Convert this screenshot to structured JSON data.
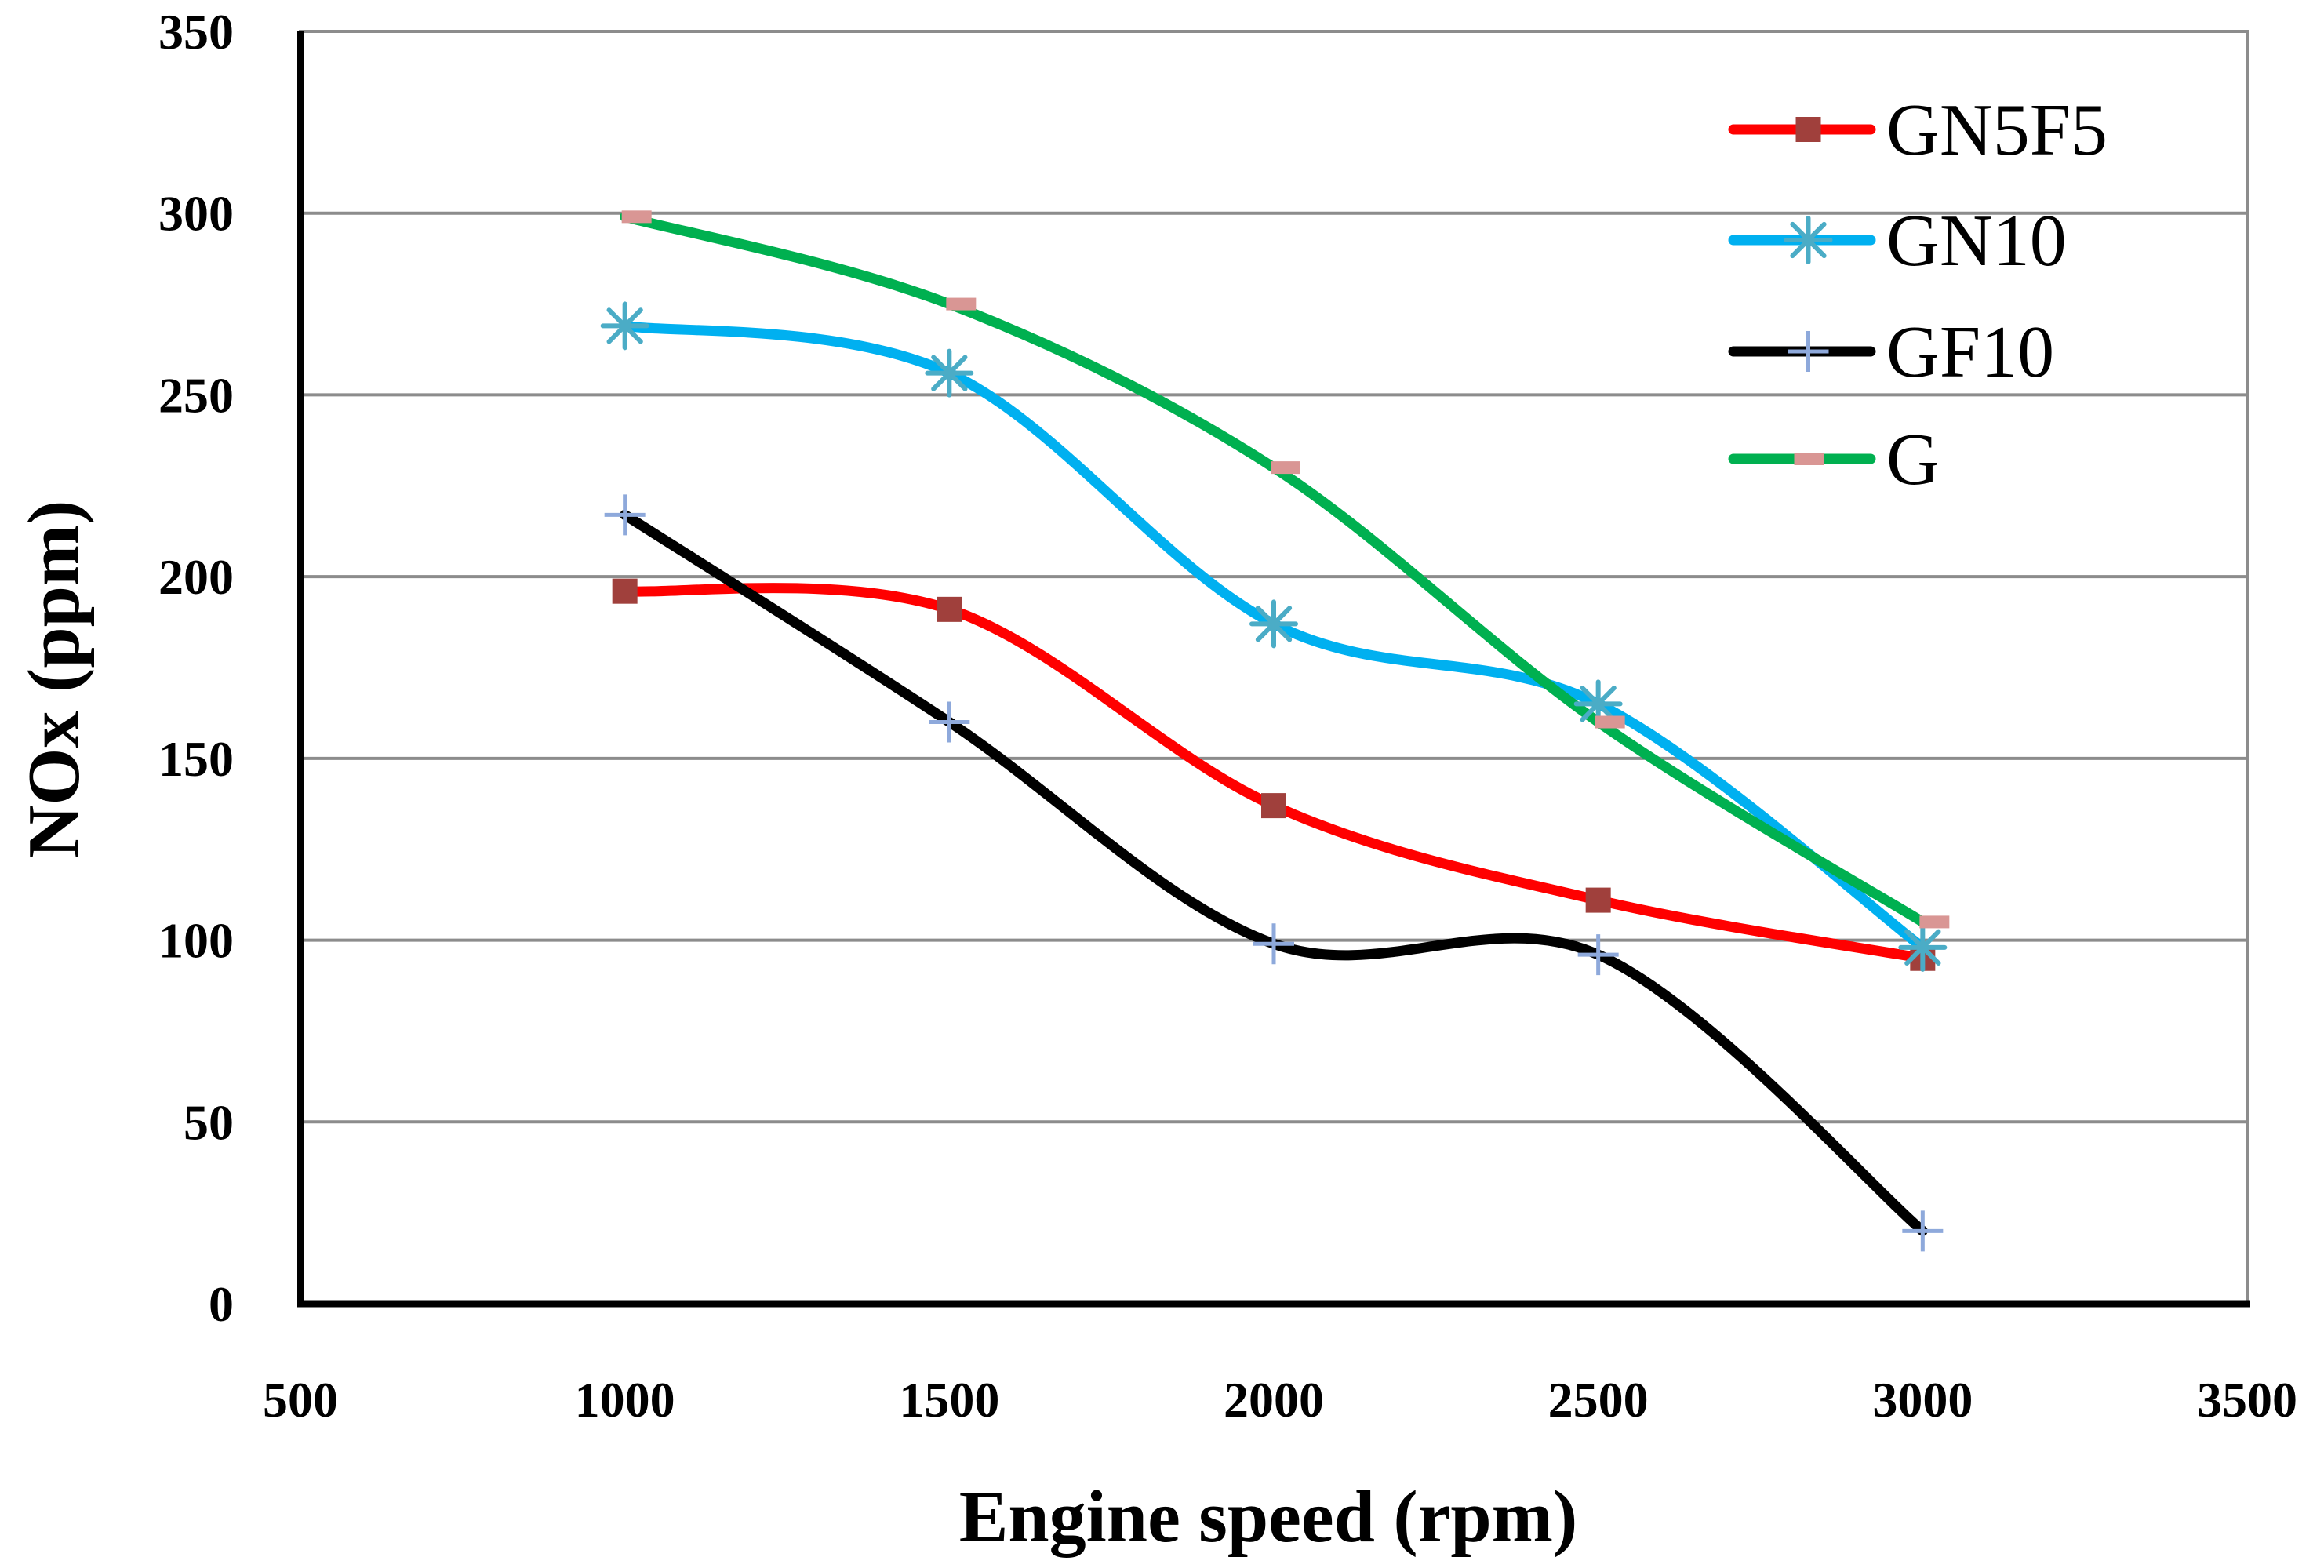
{
  "chart_data": {
    "type": "line",
    "title": "",
    "xlabel": "Engine speed (rpm)",
    "ylabel": "NOx (ppm)",
    "xlim": [
      500,
      3500
    ],
    "ylim": [
      0,
      350
    ],
    "x_ticks": [
      500,
      1000,
      1500,
      2000,
      2500,
      3000,
      3500
    ],
    "y_ticks": [
      0,
      50,
      100,
      150,
      200,
      250,
      300,
      350
    ],
    "grid": "horizontal",
    "legend_position": "top-right",
    "x": [
      1000,
      1500,
      2000,
      2500,
      3000
    ],
    "series": [
      {
        "name": "GN5F5",
        "values": [
          196,
          191,
          137,
          111,
          95
        ],
        "color": "#ff0000",
        "marker": "square",
        "marker_color": "#a0403c"
      },
      {
        "name": "GN10",
        "values": [
          269,
          256,
          187,
          165,
          98
        ],
        "color": "#00b0f0",
        "marker": "asterisk",
        "marker_color": "#4bacc6"
      },
      {
        "name": "GF10",
        "values": [
          217,
          160,
          99,
          96,
          20
        ],
        "color": "#000000",
        "marker": "plus",
        "marker_color": "#8ea9db"
      },
      {
        "name": "G",
        "values": [
          299,
          275,
          230,
          160,
          105
        ],
        "color": "#00b050",
        "marker": "dash",
        "marker_color": "#d99694"
      }
    ]
  }
}
